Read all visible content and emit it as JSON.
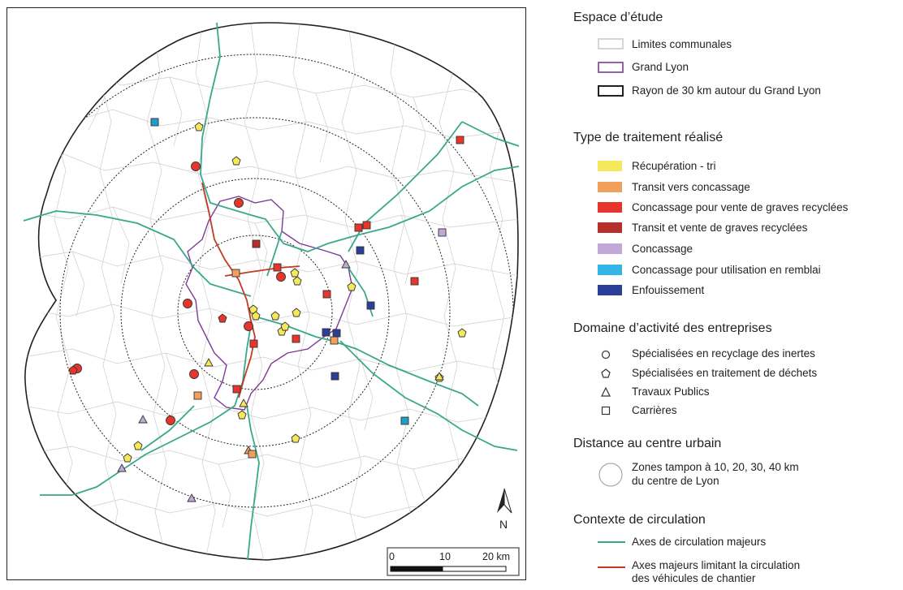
{
  "map": {
    "north_label": "N",
    "scale_labels": [
      "0",
      "10",
      "20 km"
    ],
    "colors": {
      "commune_border": "#c9c9c9",
      "grand_lyon": "#7d3a99",
      "roads_major": "#3aa88a",
      "roads_restricted": "#c23b22",
      "buffer_outline": "#222222"
    }
  },
  "legend": {
    "study_area": {
      "title": "Espace d’étude",
      "items": [
        {
          "label": "Limites communales",
          "color": "#c9c9c9"
        },
        {
          "label": "Grand Lyon",
          "color": "#7d3a99"
        },
        {
          "label": "Rayon de 30 km autour du Grand Lyon",
          "color": "#222222"
        }
      ]
    },
    "treatment": {
      "title": "Type de traitement réalisé",
      "items": [
        {
          "label": "Récupération - tri",
          "color": "#f5e85a"
        },
        {
          "label": "Transit vers concassage",
          "color": "#f0a05c"
        },
        {
          "label": "Concassage pour vente de graves recyclées",
          "color": "#e8352b"
        },
        {
          "label": "Transit et vente de graves recyclées",
          "color": "#b5302a"
        },
        {
          "label": "Concassage",
          "color": "#c2a8d8"
        },
        {
          "label": "Concassage pour utilisation en remblai",
          "color": "#33b5e5"
        },
        {
          "label": "Enfouissement",
          "color": "#2a3f95"
        }
      ]
    },
    "activity": {
      "title": "Domaine d’activité des entreprises",
      "items": [
        {
          "label": "Spécialisées en recyclage des inertes",
          "icon": "circle-icon"
        },
        {
          "label": "Spécialisées en traitement de déchets",
          "icon": "pentagon-icon"
        },
        {
          "label": "Travaux Publics",
          "icon": "triangle-icon"
        },
        {
          "label": "Carrières",
          "icon": "square-icon"
        }
      ]
    },
    "distance": {
      "title": "Distance au centre urbain",
      "line1": "Zones tampon à 10, 20, 30, 40 km",
      "line2": "du centre de Lyon"
    },
    "traffic": {
      "title": "Contexte de circulation",
      "items": [
        {
          "line1": "Axes de circulation majeurs",
          "line2": "",
          "color": "#3aa88a"
        },
        {
          "line1": "Axes majeurs limitant la circulation",
          "line2": "des véhicules de chantier",
          "color": "#c23b22"
        }
      ]
    }
  }
}
